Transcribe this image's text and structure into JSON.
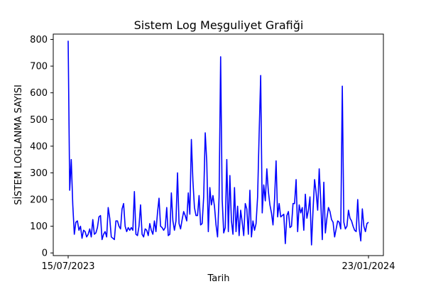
{
  "chart_data": {
    "type": "line",
    "title": "Sistem Log Meşguliyet Grafiği",
    "xlabel": "Tarih",
    "ylabel": "SİSTEM LOGLANMA SAYISI",
    "x_start": "2023-07-15",
    "x_end": "2024-01-23",
    "x_ticks": [
      "15/07/2023",
      "23/01/2024"
    ],
    "ylim": [
      -10,
      820
    ],
    "yticks": [
      0,
      100,
      200,
      300,
      400,
      500,
      600,
      700,
      800
    ],
    "grid": false,
    "series": [
      {
        "color": "#0000ff",
        "values": [
          795,
          235,
          350,
          180,
          70,
          115,
          120,
          85,
          100,
          55,
          85,
          80,
          60,
          70,
          90,
          60,
          125,
          70,
          75,
          95,
          135,
          140,
          50,
          70,
          80,
          60,
          170,
          130,
          60,
          55,
          50,
          120,
          120,
          100,
          90,
          165,
          185,
          100,
          80,
          95,
          85,
          95,
          85,
          230,
          70,
          65,
          100,
          180,
          70,
          60,
          90,
          85,
          65,
          110,
          85,
          70,
          120,
          80,
          150,
          205,
          100,
          95,
          85,
          95,
          170,
          65,
          70,
          225,
          120,
          85,
          120,
          300,
          110,
          90,
          125,
          155,
          140,
          120,
          225,
          145,
          425,
          270,
          170,
          140,
          140,
          215,
          105,
          110,
          210,
          450,
          340,
          80,
          245,
          180,
          215,
          175,
          105,
          60,
          210,
          735,
          200,
          75,
          95,
          350,
          80,
          290,
          120,
          70,
          245,
          80,
          175,
          65,
          160,
          115,
          65,
          185,
          165,
          70,
          235,
          60,
          120,
          85,
          110,
          210,
          445,
          665,
          150,
          255,
          195,
          315,
          230,
          180,
          150,
          105,
          200,
          345,
          135,
          185,
          135,
          140,
          145,
          35,
          140,
          155,
          95,
          100,
          185,
          185,
          275,
          80,
          180,
          150,
          170,
          85,
          220,
          130,
          160,
          210,
          30,
          160,
          275,
          225,
          160,
          315,
          195,
          50,
          265,
          75,
          130,
          170,
          155,
          125,
          115,
          60,
          90,
          120,
          115,
          90,
          625,
          115,
          90,
          100,
          160,
          130,
          120,
          100,
          85,
          80,
          200,
          90,
          45,
          165,
          100,
          80,
          110,
          115
        ]
      }
    ]
  }
}
